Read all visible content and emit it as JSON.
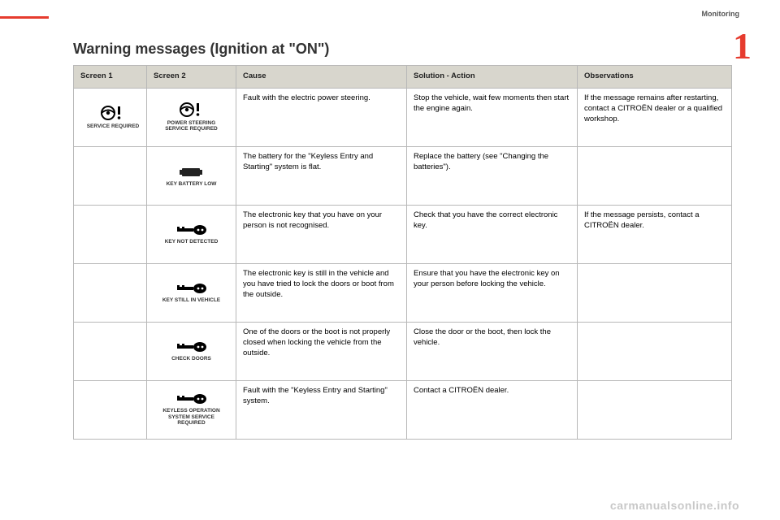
{
  "section": "Monitoring",
  "chapter": "1",
  "title": "Warning messages (Ignition at \"ON\")",
  "headers": {
    "c1": "Screen 1",
    "c2": "Screen 2",
    "c3": "Cause",
    "c4": "Solution - Action",
    "c5": "Observations"
  },
  "rows": [
    {
      "screen1": {
        "icon": "wheel-required",
        "caption": "SERVICE REQUIRED"
      },
      "screen2": {
        "icon": "wheel-required",
        "caption": "POWER STEERING SERVICE REQUIRED"
      },
      "cause": "Fault with the electric power steering.",
      "solution": "Stop the vehicle, wait few moments then start the engine again.",
      "obs": "If the message remains after restarting, contact a CITROËN dealer or a qualified workshop."
    },
    {
      "screen1": null,
      "screen2": {
        "icon": "battery",
        "caption": "KEY BATTERY LOW"
      },
      "cause": "The battery for the \"Keyless Entry and Starting\" system is flat.",
      "solution": "Replace the battery (see \"Changing the batteries\").",
      "obs": ""
    },
    {
      "screen1": null,
      "screen2": {
        "icon": "key",
        "caption": "KEY NOT DETECTED"
      },
      "cause": "The electronic key that you have on your person is not recognised.",
      "solution": "Check that you have the correct electronic key.",
      "obs": "If the message persists, contact a CITROËN dealer."
    },
    {
      "screen1": null,
      "screen2": {
        "icon": "key",
        "caption": "KEY STILL IN VEHICLE"
      },
      "cause": "The electronic key is still in the vehicle and you have tried to lock the doors or boot from the outside.",
      "solution": "Ensure that you have the electronic key on your person before locking the vehicle.",
      "obs": ""
    },
    {
      "screen1": null,
      "screen2": {
        "icon": "key",
        "caption": "CHECK DOORS"
      },
      "cause": "One of the doors or the boot is not properly closed when locking the vehicle from the outside.",
      "solution": "Close the door or the boot, then lock the vehicle.",
      "obs": ""
    },
    {
      "screen1": null,
      "screen2": {
        "icon": "key",
        "caption": "KEYLESS OPERATION SYSTEM SERVICE REQUIRED"
      },
      "cause": "Fault with the \"Keyless Entry and Starting\" system.",
      "solution": "Contact a CITROËN dealer.",
      "obs": ""
    }
  ],
  "watermark": "carmanualsonline.info",
  "colors": {
    "accent": "#e63b2e",
    "header_bg": "#d8d6cd",
    "border": "#b8b8b8",
    "text": "#333333",
    "watermark": "#c8c8c8"
  }
}
